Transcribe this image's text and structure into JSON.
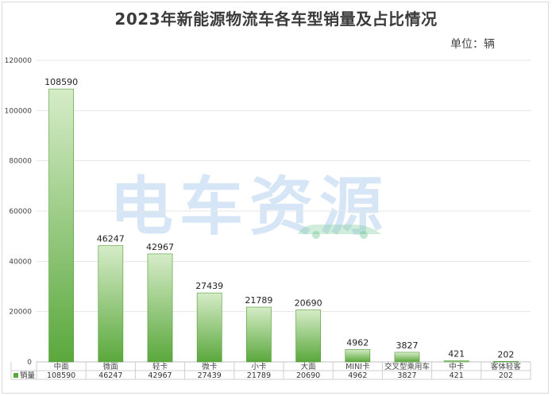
{
  "title": "2023年新能源物流车各车型销量及占比情况",
  "unit_label": "单位：辆",
  "watermark_text": "电车资源",
  "colors": {
    "bar_top": "#d6ecc8",
    "bar_bottom": "#5aa83c",
    "bar_edge": "#4f9a34",
    "grid": "#e6e6e6",
    "legend_marker": "#5aa83c"
  },
  "chart_data": {
    "type": "bar",
    "title": "2023年新能源物流车各车型销量及占比情况",
    "categories": [
      "中面",
      "微面",
      "轻卡",
      "微卡",
      "小卡",
      "大面",
      "MINI卡",
      "交叉型乘用车",
      "中卡",
      "客体轻客"
    ],
    "series": [
      {
        "name": "销量",
        "values": [
          108590,
          46247,
          42967,
          27439,
          21789,
          20690,
          4962,
          3827,
          421,
          202
        ]
      }
    ],
    "yticks": [
      0,
      20000,
      40000,
      60000,
      80000,
      100000,
      120000
    ],
    "ylim": [
      0,
      120000
    ],
    "grid": true,
    "legend": "table-below",
    "data_table": true
  }
}
